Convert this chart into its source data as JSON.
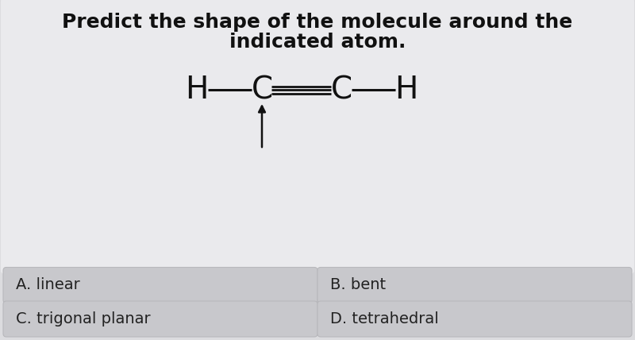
{
  "title_line1": "Predict the shape of the molecule around the",
  "title_line2": "indicated atom.",
  "bg_color": "#dcdcdf",
  "main_panel_bg": "#eaeaed",
  "button_bg": "#c8c8cc",
  "button_border": "#b8b8bc",
  "options_left": [
    "A. linear",
    "C. trigonal planar"
  ],
  "options_right": [
    "B. bent",
    "D. tetrahedral"
  ],
  "title_fontsize": 18,
  "option_fontsize": 14,
  "title_color": "#111111",
  "molecule_color": "#111111"
}
